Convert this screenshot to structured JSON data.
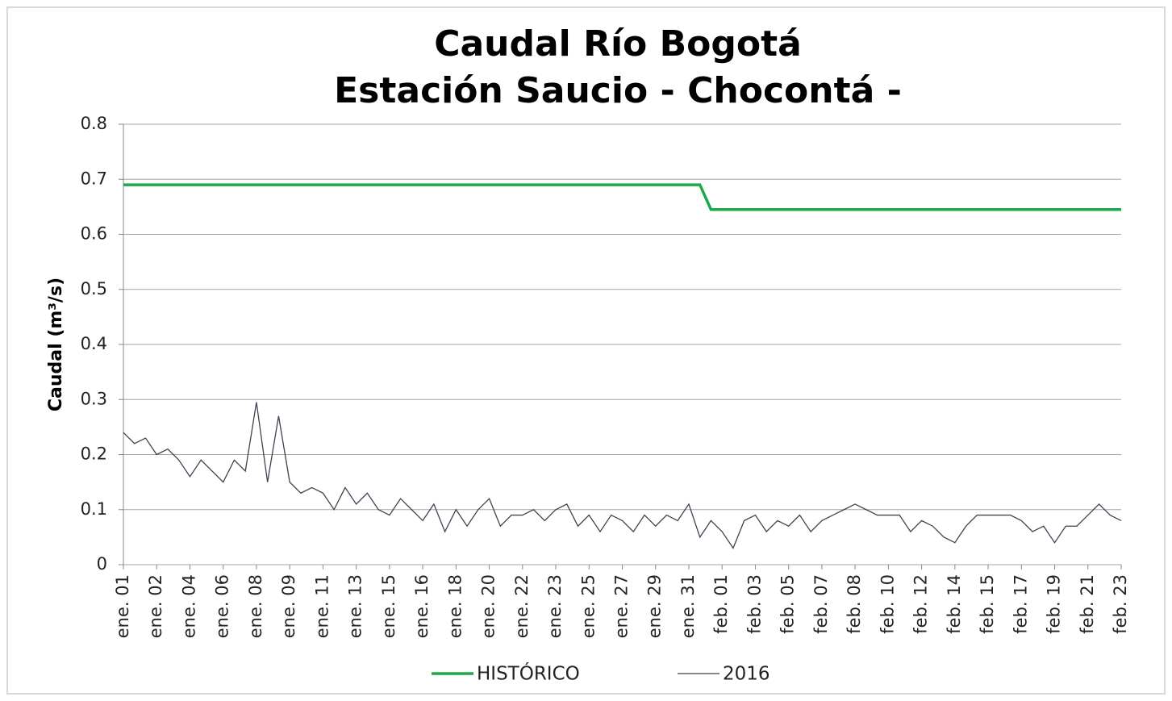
{
  "chart_data": {
    "type": "line",
    "title": [
      "Caudal Río Bogotá",
      "Estación Saucio - Chocontá -"
    ],
    "y_label": "Caudal (m³/s)",
    "categories": [
      "ene. 01",
      null,
      null,
      "ene. 02",
      null,
      null,
      "ene. 04",
      null,
      null,
      "ene. 06",
      null,
      null,
      "ene. 08",
      null,
      null,
      "ene. 09",
      null,
      null,
      "ene. 11",
      null,
      null,
      "ene. 13",
      null,
      null,
      "ene. 15",
      null,
      null,
      "ene. 16",
      null,
      null,
      "ene. 18",
      null,
      null,
      "ene. 20",
      null,
      null,
      "ene. 22",
      null,
      null,
      "ene. 23",
      null,
      null,
      "ene. 25",
      null,
      null,
      "ene. 27",
      null,
      null,
      "ene. 29",
      null,
      null,
      "ene. 31",
      null,
      null,
      "feb. 01",
      null,
      null,
      "feb. 03",
      null,
      null,
      "feb. 05",
      null,
      null,
      "feb. 07",
      null,
      null,
      "feb. 08",
      null,
      null,
      "feb. 10",
      null,
      null,
      "feb. 12",
      null,
      null,
      "feb. 14",
      null,
      null,
      "feb. 15",
      null,
      null,
      "feb. 17",
      null,
      null,
      "feb. 19",
      null,
      null,
      "feb. 21",
      null,
      null,
      "feb. 23"
    ],
    "series": [
      {
        "name": "HISTÓRICO",
        "color": "#1aaa4a",
        "width": 3.5,
        "values": [
          0.69,
          0.69,
          0.69,
          0.69,
          0.69,
          0.69,
          0.69,
          0.69,
          0.69,
          0.69,
          0.69,
          0.69,
          0.69,
          0.69,
          0.69,
          0.69,
          0.69,
          0.69,
          0.69,
          0.69,
          0.69,
          0.69,
          0.69,
          0.69,
          0.69,
          0.69,
          0.69,
          0.69,
          0.69,
          0.69,
          0.69,
          0.69,
          0.69,
          0.69,
          0.69,
          0.69,
          0.69,
          0.69,
          0.69,
          0.69,
          0.69,
          0.69,
          0.69,
          0.69,
          0.69,
          0.69,
          0.69,
          0.69,
          0.69,
          0.69,
          0.69,
          0.69,
          0.69,
          0.645,
          0.645,
          0.645,
          0.645,
          0.645,
          0.645,
          0.645,
          0.645,
          0.645,
          0.645,
          0.645,
          0.645,
          0.645,
          0.645,
          0.645,
          0.645,
          0.645,
          0.645,
          0.645,
          0.645,
          0.645,
          0.645,
          0.645,
          0.645,
          0.645,
          0.645,
          0.645,
          0.645,
          0.645,
          0.645,
          0.645,
          0.645,
          0.645,
          0.645,
          0.645,
          0.645,
          0.645,
          0.645
        ]
      },
      {
        "name": "2016",
        "color": "#3c4452",
        "width": 1.3,
        "values": [
          0.24,
          0.22,
          0.23,
          0.2,
          0.21,
          0.19,
          0.16,
          0.19,
          0.17,
          0.15,
          0.19,
          0.17,
          0.295,
          0.15,
          0.27,
          0.15,
          0.13,
          0.14,
          0.13,
          0.1,
          0.14,
          0.11,
          0.13,
          0.1,
          0.09,
          0.12,
          0.1,
          0.08,
          0.11,
          0.06,
          0.1,
          0.07,
          0.1,
          0.12,
          0.07,
          0.09,
          0.09,
          0.1,
          0.08,
          0.1,
          0.11,
          0.07,
          0.09,
          0.06,
          0.09,
          0.08,
          0.06,
          0.09,
          0.07,
          0.09,
          0.08,
          0.11,
          0.05,
          0.08,
          0.06,
          0.03,
          0.08,
          0.09,
          0.06,
          0.08,
          0.07,
          0.09,
          0.06,
          0.08,
          0.09,
          0.1,
          0.11,
          0.1,
          0.09,
          0.09,
          0.09,
          0.06,
          0.08,
          0.07,
          0.05,
          0.04,
          0.07,
          0.09,
          0.09,
          0.09,
          0.09,
          0.08,
          0.06,
          0.07,
          0.04,
          0.07,
          0.07,
          0.09,
          0.11,
          0.09,
          0.08
        ]
      }
    ],
    "ylim": [
      0,
      0.8
    ],
    "yticks": [
      0,
      0.1,
      0.2,
      0.3,
      0.4,
      0.5,
      0.6,
      0.7,
      0.8
    ],
    "grid": true,
    "legend": "bottom"
  }
}
